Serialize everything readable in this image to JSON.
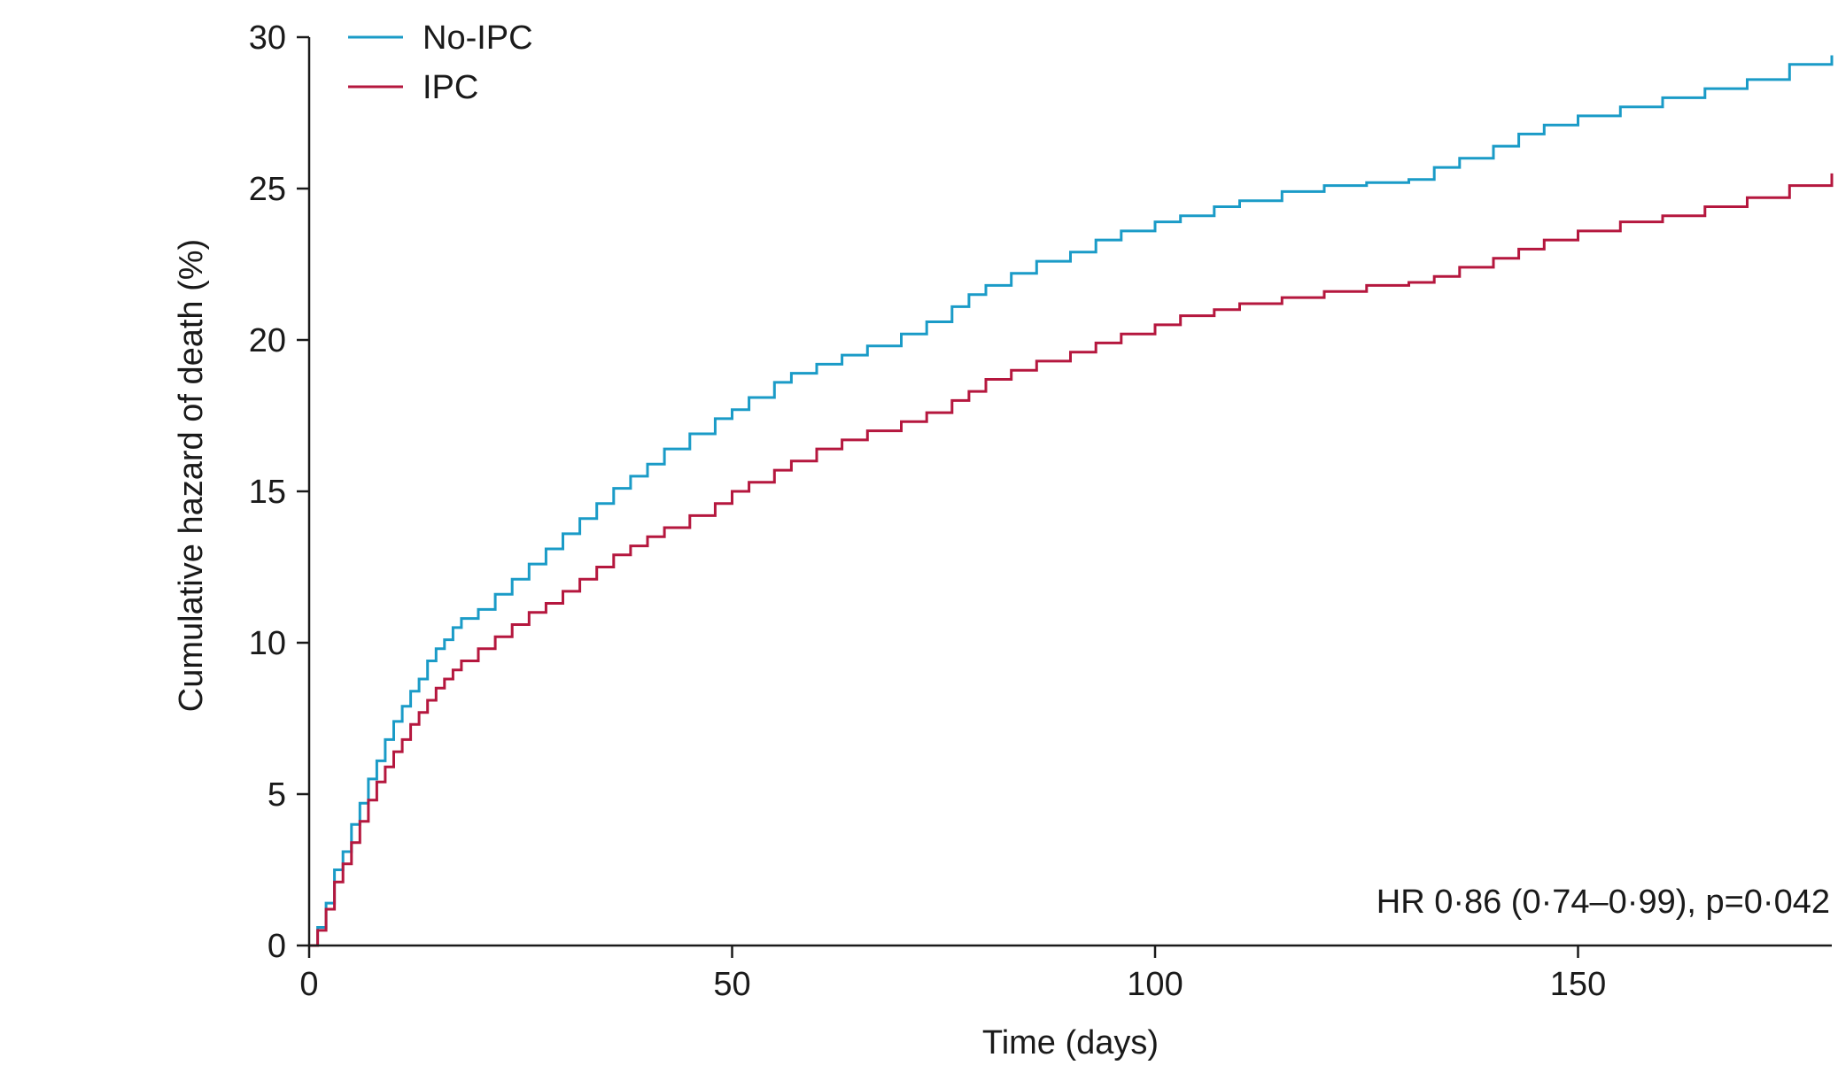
{
  "chart_data": {
    "type": "line",
    "title": "",
    "xlabel": "Time (days)",
    "ylabel": "Cumulative hazard of death (%)",
    "xlim": [
      0,
      180
    ],
    "ylim": [
      0,
      30
    ],
    "xticks": [
      0,
      50,
      100,
      150
    ],
    "yticks": [
      0,
      5,
      10,
      15,
      20,
      25,
      30
    ],
    "grid": false,
    "legend_position": "top-left",
    "annotation": "HR 0·86 (0·74–0·99), p=0·042",
    "series": [
      {
        "name": "No-IPC",
        "color": "#1a9bc7",
        "step": true,
        "x": [
          0,
          1,
          2,
          3,
          4,
          5,
          6,
          7,
          8,
          9,
          10,
          11,
          12,
          13,
          14,
          15,
          16,
          17,
          18,
          20,
          22,
          24,
          26,
          28,
          30,
          32,
          34,
          36,
          38,
          40,
          42,
          45,
          48,
          50,
          52,
          55,
          57,
          60,
          63,
          66,
          70,
          73,
          76,
          78,
          80,
          83,
          86,
          90,
          93,
          96,
          100,
          103,
          107,
          110,
          115,
          120,
          125,
          130,
          133,
          136,
          140,
          143,
          146,
          150,
          155,
          160,
          165,
          170,
          175,
          180
        ],
        "y": [
          0,
          0.6,
          1.4,
          2.5,
          3.1,
          4.0,
          4.7,
          5.5,
          6.1,
          6.8,
          7.4,
          7.9,
          8.4,
          8.8,
          9.4,
          9.8,
          10.1,
          10.5,
          10.8,
          11.1,
          11.6,
          12.1,
          12.6,
          13.1,
          13.6,
          14.1,
          14.6,
          15.1,
          15.5,
          15.9,
          16.4,
          16.9,
          17.4,
          17.7,
          18.1,
          18.6,
          18.9,
          19.2,
          19.5,
          19.8,
          20.2,
          20.6,
          21.1,
          21.5,
          21.8,
          22.2,
          22.6,
          22.9,
          23.3,
          23.6,
          23.9,
          24.1,
          24.4,
          24.6,
          24.9,
          25.1,
          25.2,
          25.3,
          25.7,
          26.0,
          26.4,
          26.8,
          27.1,
          27.4,
          27.7,
          28.0,
          28.3,
          28.6,
          29.1,
          29.4
        ]
      },
      {
        "name": "IPC",
        "color": "#b5173e",
        "step": true,
        "x": [
          0,
          1,
          2,
          3,
          4,
          5,
          6,
          7,
          8,
          9,
          10,
          11,
          12,
          13,
          14,
          15,
          16,
          17,
          18,
          20,
          22,
          24,
          26,
          28,
          30,
          32,
          34,
          36,
          38,
          40,
          42,
          45,
          48,
          50,
          52,
          55,
          57,
          60,
          63,
          66,
          70,
          73,
          76,
          78,
          80,
          83,
          86,
          90,
          93,
          96,
          100,
          103,
          107,
          110,
          115,
          120,
          125,
          130,
          133,
          136,
          140,
          143,
          146,
          150,
          155,
          160,
          165,
          170,
          175,
          180
        ],
        "y": [
          0,
          0.5,
          1.2,
          2.1,
          2.7,
          3.4,
          4.1,
          4.8,
          5.4,
          5.9,
          6.4,
          6.8,
          7.3,
          7.7,
          8.1,
          8.5,
          8.8,
          9.1,
          9.4,
          9.8,
          10.2,
          10.6,
          11.0,
          11.3,
          11.7,
          12.1,
          12.5,
          12.9,
          13.2,
          13.5,
          13.8,
          14.2,
          14.6,
          15.0,
          15.3,
          15.7,
          16.0,
          16.4,
          16.7,
          17.0,
          17.3,
          17.6,
          18.0,
          18.3,
          18.7,
          19.0,
          19.3,
          19.6,
          19.9,
          20.2,
          20.5,
          20.8,
          21.0,
          21.2,
          21.4,
          21.6,
          21.8,
          21.9,
          22.1,
          22.4,
          22.7,
          23.0,
          23.3,
          23.6,
          23.9,
          24.1,
          24.4,
          24.7,
          25.1,
          25.5
        ]
      }
    ]
  }
}
